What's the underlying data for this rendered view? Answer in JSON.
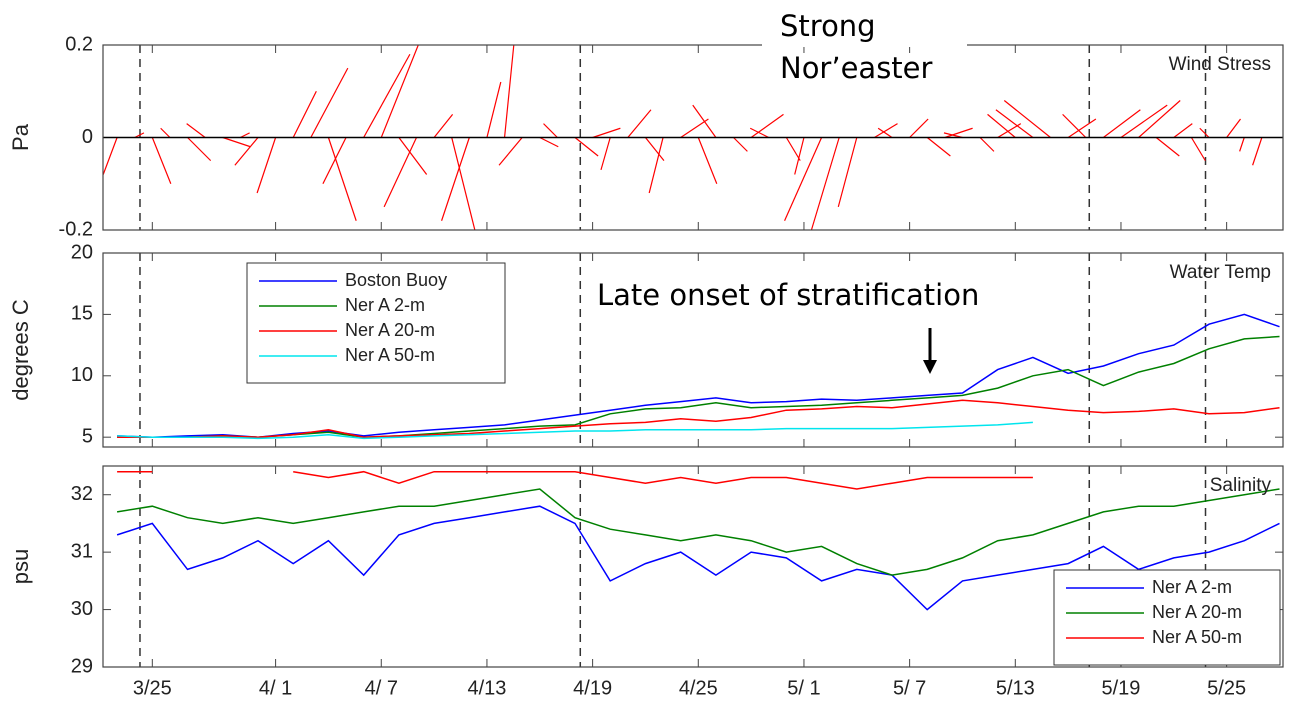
{
  "x_axis": {
    "xlim": [
      81.2,
      148.2
    ],
    "xticks": [
      {
        "value": 84,
        "label": "3/25"
      },
      {
        "value": 91,
        "label": "4/ 1"
      },
      {
        "value": 97,
        "label": "4/ 7"
      },
      {
        "value": 103,
        "label": "4/13"
      },
      {
        "value": 109,
        "label": "4/19"
      },
      {
        "value": 115,
        "label": "4/25"
      },
      {
        "value": 121,
        "label": "5/ 1"
      },
      {
        "value": 127,
        "label": "5/ 7"
      },
      {
        "value": 133,
        "label": "5/13"
      },
      {
        "value": 139,
        "label": "5/19"
      },
      {
        "value": 145,
        "label": "5/25"
      }
    ],
    "event_lines": [
      83.3,
      108.3,
      137.2,
      143.8
    ]
  },
  "chart_data": [
    {
      "type": "stick",
      "title": "Wind Stress",
      "ylabel": "Pa",
      "color": "#ff0000",
      "annotation": [
        "Strong",
        "Nor’easter"
      ],
      "ylim": [
        -0.2,
        0.2
      ],
      "yticks": [
        -0.2,
        0,
        0.2
      ],
      "x": [
        82,
        83,
        84,
        85,
        86,
        87,
        88,
        89,
        90,
        91,
        92,
        93,
        94,
        95,
        96,
        97,
        98,
        99,
        100,
        101,
        102,
        103,
        104,
        105,
        106,
        107,
        108,
        109,
        110,
        111,
        112,
        113,
        114,
        115,
        116,
        117,
        118,
        119,
        120,
        121,
        122,
        123,
        124,
        125,
        126,
        127,
        128,
        129,
        130,
        131,
        132,
        133,
        134,
        135,
        136,
        137,
        138,
        139,
        140,
        141,
        142,
        143,
        144,
        145,
        146,
        147
      ],
      "u": [
        -0.03,
        0.02,
        0.04,
        -0.02,
        0.05,
        -0.04,
        0.06,
        0.02,
        -0.05,
        -0.04,
        0.05,
        0.08,
        0.06,
        -0.05,
        0.1,
        0.08,
        0.06,
        -0.07,
        0.04,
        0.05,
        -0.06,
        0.03,
        0.02,
        -0.05,
        0.04,
        -0.03,
        0.05,
        0.06,
        -0.02,
        0.05,
        0.04,
        -0.03,
        0.06,
        0.04,
        -0.05,
        0.03,
        0.07,
        -0.04,
        0.03,
        -0.02,
        -0.08,
        -0.06,
        -0.04,
        0.05,
        -0.03,
        0.04,
        0.05,
        0.06,
        -0.04,
        0.03,
        0.05,
        -0.06,
        -0.08,
        -0.1,
        0.06,
        -0.05,
        0.08,
        0.1,
        0.09,
        0.05,
        0.04,
        0.03,
        -0.02,
        0.03,
        -0.01,
        -0.02
      ],
      "v": [
        -0.08,
        0.01,
        -0.1,
        0.02,
        -0.05,
        0.03,
        -0.02,
        0.01,
        -0.06,
        -0.12,
        0.1,
        0.15,
        -0.18,
        -0.1,
        0.18,
        0.2,
        -0.08,
        -0.15,
        0.05,
        -0.2,
        -0.18,
        0.12,
        0.2,
        -0.06,
        -0.02,
        0.03,
        -0.04,
        0.02,
        -0.07,
        0.06,
        -0.05,
        -0.12,
        0.04,
        -0.1,
        0.07,
        -0.03,
        0.05,
        0.02,
        -0.05,
        -0.08,
        -0.18,
        -0.2,
        -0.15,
        0.03,
        0.02,
        0.04,
        -0.04,
        0.02,
        0.01,
        -0.03,
        0.03,
        0.05,
        0.06,
        0.08,
        0.04,
        0.05,
        0.06,
        0.07,
        0.08,
        -0.04,
        0.03,
        -0.05,
        0.02,
        0.04,
        -0.03,
        -0.06
      ]
    },
    {
      "type": "line",
      "title": "Water Temp",
      "ylabel": "degrees C",
      "annotation": "Late onset of stratification",
      "legend": "upper left",
      "ylim": [
        4.2,
        20
      ],
      "yticks": [
        5,
        10,
        15,
        20
      ],
      "x": [
        82,
        84,
        86,
        88,
        90,
        92,
        94,
        96,
        98,
        100,
        102,
        104,
        106,
        108,
        110,
        112,
        114,
        116,
        118,
        120,
        122,
        124,
        126,
        128,
        130,
        132,
        134,
        136,
        138,
        140,
        142,
        144,
        146,
        148
      ],
      "series": [
        {
          "name": "Boston Buoy",
          "color": "#0000ff",
          "values": [
            5.1,
            5.0,
            5.1,
            5.2,
            5.0,
            5.3,
            5.5,
            5.1,
            5.4,
            5.6,
            5.8,
            6.0,
            6.4,
            6.8,
            7.2,
            7.6,
            7.9,
            8.2,
            7.8,
            7.9,
            8.1,
            8.0,
            8.2,
            8.4,
            8.6,
            10.5,
            11.5,
            10.2,
            10.8,
            11.8,
            12.5,
            14.2,
            15.0,
            14.0
          ]
        },
        {
          "name": "Ner A 2-m",
          "color": "#008000",
          "values": [
            5.0,
            5.0,
            5.0,
            5.1,
            5.0,
            5.2,
            5.4,
            5.0,
            5.1,
            5.3,
            5.5,
            5.7,
            5.9,
            6.0,
            6.9,
            7.3,
            7.4,
            7.8,
            7.4,
            7.5,
            7.6,
            7.8,
            8.0,
            8.2,
            8.4,
            9.0,
            10.0,
            10.5,
            9.2,
            10.3,
            11.0,
            12.2,
            13.0,
            13.2
          ]
        },
        {
          "name": "Ner A 20-m",
          "color": "#ff0000",
          "values": [
            5.0,
            5.0,
            5.0,
            5.1,
            5.0,
            5.2,
            5.6,
            5.0,
            5.1,
            5.2,
            5.3,
            5.5,
            5.7,
            5.9,
            6.1,
            6.2,
            6.5,
            6.3,
            6.6,
            7.2,
            7.3,
            7.5,
            7.4,
            7.7,
            8.0,
            7.8,
            7.5,
            7.2,
            7.0,
            7.1,
            7.3,
            6.9,
            7.0,
            7.4
          ]
        },
        {
          "name": "Ner A 50-m",
          "color": "#00e5ee",
          "values": [
            5.1,
            5.0,
            5.0,
            5.0,
            4.9,
            5.0,
            5.2,
            4.9,
            5.0,
            5.1,
            5.2,
            5.3,
            5.4,
            5.5,
            5.5,
            5.6,
            5.6,
            5.6,
            5.6,
            5.7,
            5.7,
            5.7,
            5.7,
            5.8,
            5.9,
            6.0,
            6.2,
            null,
            null,
            null,
            null,
            null,
            null,
            null
          ]
        }
      ]
    },
    {
      "type": "line",
      "title": "Salinity",
      "ylabel": "psu",
      "legend": "lower right",
      "ylim": [
        29,
        32.5
      ],
      "yticks": [
        29,
        30,
        31,
        32
      ],
      "x": [
        82,
        84,
        86,
        88,
        90,
        92,
        94,
        96,
        98,
        100,
        102,
        104,
        106,
        108,
        110,
        112,
        114,
        116,
        118,
        120,
        122,
        124,
        126,
        128,
        130,
        132,
        134,
        136,
        138,
        140,
        142,
        144,
        146,
        148
      ],
      "series": [
        {
          "name": "Ner A 2-m",
          "color": "#0000ff",
          "values": [
            31.3,
            31.5,
            30.7,
            30.9,
            31.2,
            30.8,
            31.2,
            30.6,
            31.3,
            31.5,
            31.6,
            31.7,
            31.8,
            31.5,
            30.5,
            30.8,
            31.0,
            30.6,
            31.0,
            30.9,
            30.5,
            30.7,
            30.6,
            30.0,
            30.5,
            30.6,
            30.7,
            30.8,
            31.1,
            30.7,
            30.9,
            31.0,
            31.2,
            31.5
          ]
        },
        {
          "name": "Ner A 20-m",
          "color": "#008000",
          "values": [
            31.7,
            31.8,
            31.6,
            31.5,
            31.6,
            31.5,
            31.6,
            31.7,
            31.8,
            31.8,
            31.9,
            32.0,
            32.1,
            31.6,
            31.4,
            31.3,
            31.2,
            31.3,
            31.2,
            31.0,
            31.1,
            30.8,
            30.6,
            30.7,
            30.9,
            31.2,
            31.3,
            31.5,
            31.7,
            31.8,
            31.8,
            31.9,
            32.0,
            32.1
          ]
        },
        {
          "name": "Ner A 50-m",
          "color": "#ff0000",
          "values": [
            32.4,
            32.4,
            null,
            null,
            null,
            32.4,
            32.3,
            32.4,
            32.2,
            32.4,
            32.4,
            32.4,
            32.4,
            32.4,
            32.3,
            32.2,
            32.3,
            32.2,
            32.3,
            32.3,
            32.2,
            32.1,
            32.2,
            32.3,
            32.3,
            32.3,
            32.3,
            null,
            null,
            null,
            null,
            null,
            null,
            null
          ]
        }
      ]
    }
  ]
}
